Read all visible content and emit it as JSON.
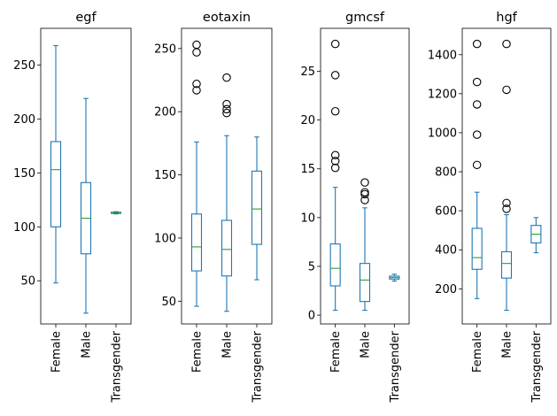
{
  "colors": {
    "box": "#1f77b4",
    "median": "#2ca02c",
    "flier": "#000000"
  },
  "chart_data": [
    {
      "type": "box",
      "title": "egf",
      "categories": [
        "Female",
        "Male",
        "Transgender"
      ],
      "ylim": [
        10,
        284
      ],
      "yticks": [
        50,
        100,
        150,
        200,
        250
      ],
      "boxes": [
        {
          "whislo": 48,
          "q1": 100,
          "med": 153,
          "q3": 179,
          "whishi": 268,
          "fliers": []
        },
        {
          "whislo": 20,
          "q1": 75,
          "med": 108,
          "q3": 141,
          "whishi": 219,
          "fliers": []
        },
        {
          "whislo": 112,
          "q1": 112.5,
          "med": 113,
          "q3": 113.5,
          "whishi": 114,
          "fliers": []
        }
      ]
    },
    {
      "type": "box",
      "title": "eotaxin",
      "categories": [
        "Female",
        "Male",
        "Transgender"
      ],
      "ylim": [
        32,
        266
      ],
      "yticks": [
        50,
        100,
        150,
        200,
        250
      ],
      "boxes": [
        {
          "whislo": 46,
          "q1": 74,
          "med": 93,
          "q3": 119,
          "whishi": 176,
          "fliers": [
            217,
            222,
            247,
            253
          ]
        },
        {
          "whislo": 42,
          "q1": 70,
          "med": 91,
          "q3": 114,
          "whishi": 181,
          "fliers": [
            199,
            202,
            206,
            227
          ]
        },
        {
          "whislo": 67,
          "q1": 95,
          "med": 123,
          "q3": 153,
          "whishi": 180,
          "fliers": []
        }
      ]
    },
    {
      "type": "box",
      "title": "gmcsf",
      "categories": [
        "Female",
        "Male",
        "Transgender"
      ],
      "ylim": [
        -0.9,
        29.4
      ],
      "yticks": [
        0,
        5,
        10,
        15,
        20,
        25
      ],
      "boxes": [
        {
          "whislo": 0.5,
          "q1": 3.0,
          "med": 4.8,
          "q3": 7.3,
          "whishi": 13.1,
          "fliers": [
            15.1,
            15.8,
            16.4,
            20.9,
            24.6,
            27.8
          ]
        },
        {
          "whislo": 0.5,
          "q1": 1.4,
          "med": 3.6,
          "q3": 5.3,
          "whishi": 11.0,
          "fliers": [
            11.8,
            12.4,
            12.6,
            13.6
          ]
        },
        {
          "whislo": 3.5,
          "q1": 3.7,
          "med": 3.85,
          "q3": 4.0,
          "whishi": 4.2,
          "fliers": []
        }
      ]
    },
    {
      "type": "box",
      "title": "hgf",
      "categories": [
        "Female",
        "Male",
        "Transgender"
      ],
      "ylim": [
        20,
        1535
      ],
      "yticks": [
        200,
        400,
        600,
        800,
        1000,
        1200,
        1400
      ],
      "boxes": [
        {
          "whislo": 150,
          "q1": 300,
          "med": 360,
          "q3": 510,
          "whishi": 695,
          "fliers": [
            835,
            990,
            1145,
            1260,
            1455
          ]
        },
        {
          "whislo": 90,
          "q1": 255,
          "med": 330,
          "q3": 390,
          "whishi": 580,
          "fliers": [
            610,
            640,
            1220,
            1455
          ]
        },
        {
          "whislo": 385,
          "q1": 435,
          "med": 480,
          "q3": 525,
          "whishi": 565,
          "fliers": []
        }
      ]
    }
  ]
}
